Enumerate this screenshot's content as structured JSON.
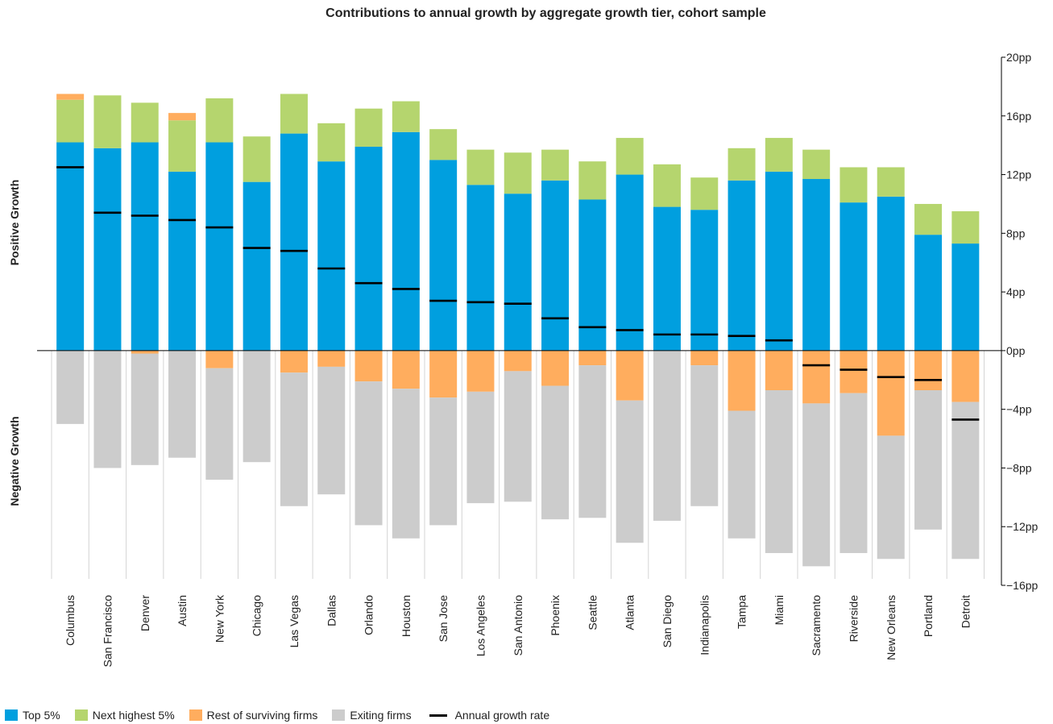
{
  "chart_data": {
    "type": "bar",
    "stacked": true,
    "title": "Contributions to annual growth by aggregate growth tier, cohort sample",
    "positive_axis_label": "Positive Growth",
    "negative_axis_label": "Negative Growth",
    "ylim": [
      -16,
      20
    ],
    "yticks": [
      20,
      16,
      12,
      8,
      4,
      0,
      -4,
      -8,
      -12,
      -16
    ],
    "ytick_suffix": "pp",
    "grid": false,
    "legend_position": "bottom-left",
    "categories": [
      "Columbus",
      "San Francisco",
      "Denver",
      "Austin",
      "New York",
      "Chicago",
      "Las Vegas",
      "Dallas",
      "Orlando",
      "Houston",
      "San Jose",
      "Los Angeles",
      "San Antonio",
      "Phoenix",
      "Seattle",
      "Atlanta",
      "San Diego",
      "Indianapolis",
      "Tampa",
      "Miami",
      "Sacramento",
      "Riverside",
      "New Orleans",
      "Portland",
      "Detroit"
    ],
    "series": [
      {
        "name": "Top 5%",
        "color": "#009fdf",
        "values": [
          14.2,
          13.8,
          14.2,
          12.2,
          14.2,
          11.5,
          14.8,
          12.9,
          13.9,
          14.9,
          13.0,
          11.3,
          10.7,
          11.6,
          10.3,
          12.0,
          9.8,
          9.6,
          11.6,
          12.2,
          11.7,
          10.1,
          10.5,
          7.9,
          7.3
        ]
      },
      {
        "name": "Next highest 5%",
        "color": "#b5d56e",
        "values": [
          2.9,
          3.6,
          2.7,
          3.5,
          3.0,
          3.1,
          2.7,
          2.6,
          2.6,
          2.1,
          2.1,
          2.4,
          2.8,
          2.1,
          2.6,
          2.5,
          2.9,
          2.2,
          2.2,
          2.3,
          2.0,
          2.4,
          2.0,
          2.1,
          2.2
        ]
      },
      {
        "name": "Rest of surviving firms",
        "color": "#ffad5e",
        "values": [
          0.4,
          0.0,
          -0.2,
          0.5,
          -1.2,
          0.0,
          -1.5,
          -1.1,
          -2.1,
          -2.6,
          -3.2,
          -2.8,
          -1.4,
          -2.4,
          -1.0,
          -3.4,
          0.0,
          -1.0,
          -4.1,
          -2.7,
          -3.6,
          -2.9,
          -5.8,
          -2.7,
          -3.5
        ]
      },
      {
        "name": "Exiting firms",
        "color": "#cccccc",
        "values": [
          -5.0,
          -8.0,
          -7.6,
          -7.3,
          -7.6,
          -7.6,
          -9.1,
          -8.7,
          -9.8,
          -10.2,
          -8.7,
          -7.6,
          -8.9,
          -9.1,
          -10.4,
          -9.7,
          -11.6,
          -9.6,
          -8.7,
          -11.1,
          -11.1,
          -10.9,
          -8.4,
          -9.5,
          -10.7
        ]
      }
    ],
    "line_series": {
      "name": "Annual growth rate",
      "color": "#000000",
      "values": [
        12.5,
        9.4,
        9.2,
        8.9,
        8.4,
        7.0,
        6.8,
        5.6,
        4.6,
        4.2,
        3.4,
        3.3,
        3.2,
        2.2,
        1.6,
        1.4,
        1.1,
        1.1,
        1.0,
        0.7,
        -1.0,
        -1.3,
        -1.8,
        -2.0,
        -4.7
      ]
    }
  }
}
